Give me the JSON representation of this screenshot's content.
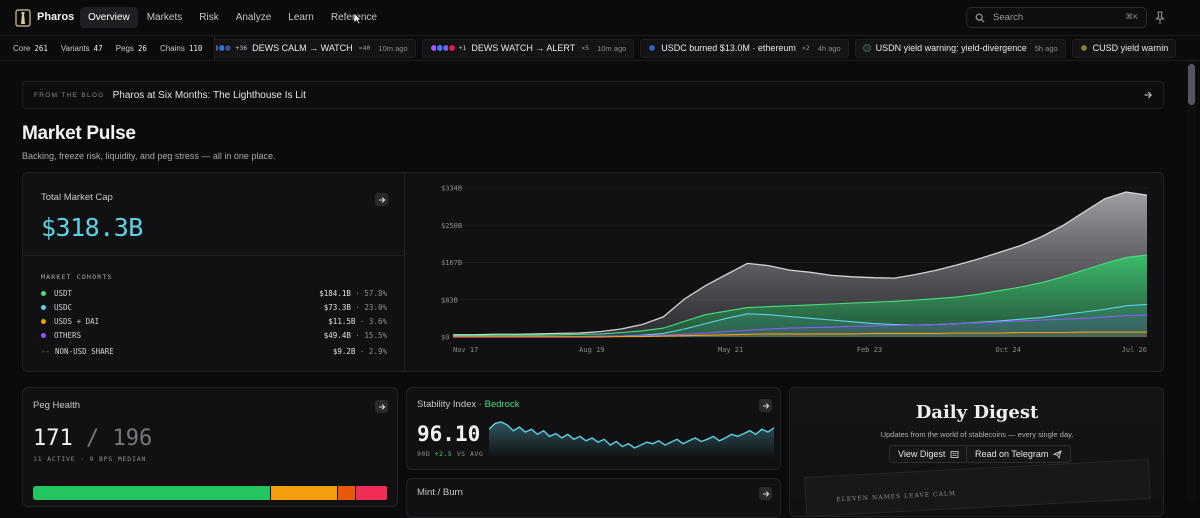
{
  "nav": {
    "brand": "Pharos",
    "links": [
      "Overview",
      "Markets",
      "Risk",
      "Analyze",
      "Learn",
      "Reference"
    ],
    "active": "Overview",
    "search_placeholder": "Search",
    "search_shortcut": "⌘K"
  },
  "ticker": {
    "stats": [
      {
        "label": "Core",
        "value": "261"
      },
      {
        "label": "Variants",
        "value": "47"
      },
      {
        "label": "Pegs",
        "value": "26"
      },
      {
        "label": "Chains",
        "value": "110"
      }
    ],
    "items": [
      {
        "extra": "+36",
        "text": "DEWS CALM → WATCH",
        "count": "×40",
        "age": "10m ago"
      },
      {
        "extra": "+1",
        "text": "DEWS WATCH → ALERT",
        "count": "×5",
        "age": "10m ago"
      },
      {
        "text": "USDC burned $13.0M · ethereum",
        "count": "×2",
        "age": "4h ago"
      },
      {
        "text": "USDN yield warning: yield-divergence",
        "age": "5h ago"
      },
      {
        "text": "CUSD yield warnin"
      }
    ]
  },
  "banner": {
    "tag": "FROM THE BLOG",
    "title": "Pharos at Six Months: The Lighthouse Is Lit"
  },
  "market_pulse": {
    "title": "Market Pulse",
    "subtitle": "Backing, freeze risk, liquidity, and peg stress — all in one place."
  },
  "market_cap": {
    "label": "Total Market Cap",
    "value": "$318.3B",
    "cohorts_label": "MARKET COHORTS",
    "cohorts": [
      {
        "name": "USDT",
        "value": "$184.1B",
        "share": "57.8%",
        "color": "#4ade80"
      },
      {
        "name": "USDC",
        "value": "$73.3B",
        "share": "23.0%",
        "color": "#5fd3e6"
      },
      {
        "name": "USDS + DAI",
        "value": "$11.5B",
        "share": "3.6%",
        "color": "#f59e0b"
      },
      {
        "name": "OTHERS",
        "value": "$49.4B",
        "share": "15.5%",
        "color": "#8b5cf6"
      },
      {
        "name": "NON-USD SHARE",
        "value": "$9.2B",
        "share": "2.9%",
        "color": "#6b6b70"
      }
    ]
  },
  "chart_data": {
    "type": "area",
    "x_labels": [
      "Nov 17",
      "Aug 19",
      "May 21",
      "Feb 23",
      "Oct 24",
      "Jul 26"
    ],
    "y_labels": [
      "$334B",
      "$250B",
      "$167B",
      "$83B",
      "$0"
    ],
    "ylim": [
      0,
      334
    ],
    "series": [
      {
        "name": "Total",
        "color": "#9a9aa0",
        "values": [
          5,
          5,
          6,
          6,
          7,
          8,
          9,
          12,
          18,
          28,
          45,
          85,
          115,
          140,
          165,
          160,
          150,
          145,
          138,
          135,
          133,
          132,
          140,
          150,
          162,
          175,
          190,
          205,
          225,
          250,
          280,
          310,
          325,
          318
        ]
      },
      {
        "name": "USDT",
        "color": "#4ade80",
        "values": [
          3,
          3,
          4,
          4,
          4,
          5,
          6,
          7,
          10,
          14,
          20,
          35,
          50,
          58,
          66,
          68,
          70,
          72,
          74,
          76,
          78,
          80,
          83,
          86,
          90,
          96,
          104,
          112,
          122,
          135,
          150,
          165,
          178,
          184
        ]
      },
      {
        "name": "USDC",
        "color": "#5fd3e6",
        "values": [
          0,
          0,
          0,
          0,
          0,
          0,
          0,
          1,
          2,
          4,
          8,
          18,
          30,
          42,
          52,
          50,
          46,
          42,
          38,
          34,
          30,
          28,
          27,
          28,
          30,
          33,
          36,
          40,
          44,
          50,
          56,
          62,
          70,
          73
        ]
      },
      {
        "name": "OTHERS",
        "color": "#8b5cf6",
        "values": [
          1,
          1,
          1,
          1,
          1,
          1,
          1,
          2,
          2,
          3,
          4,
          6,
          9,
          12,
          15,
          18,
          20,
          21,
          22,
          24,
          25,
          26,
          27,
          28,
          30,
          32,
          34,
          36,
          38,
          40,
          42,
          45,
          48,
          49
        ]
      },
      {
        "name": "USDS + DAI",
        "color": "#f59e0b",
        "values": [
          0,
          0,
          0,
          0,
          0,
          0,
          0,
          0,
          1,
          1,
          2,
          3,
          4,
          5,
          6,
          7,
          7,
          7,
          7,
          7,
          8,
          8,
          8,
          8,
          9,
          9,
          9,
          10,
          10,
          10,
          11,
          11,
          11,
          11
        ]
      }
    ]
  },
  "peg_health": {
    "label": "Peg Health",
    "value": "171",
    "total": "196",
    "meta": "11 ACTIVE · 9 BPS MEDIAN",
    "bar": [
      {
        "share": 0.67,
        "color": "#22c55e"
      },
      {
        "share": 0.19,
        "color": "#f59e0b"
      },
      {
        "share": 0.05,
        "color": "#ea580c"
      },
      {
        "share": 0.09,
        "color": "#ef2d55"
      }
    ]
  },
  "stability": {
    "label": "Stability Index",
    "tag": "Bedrock",
    "value": "96.10",
    "meta_prefix": "90D",
    "meta_delta": "+2.5",
    "meta_suffix": "VS AVG",
    "spark": [
      62,
      70,
      72,
      68,
      60,
      65,
      58,
      62,
      55,
      60,
      52,
      56,
      50,
      55,
      48,
      52,
      46,
      50,
      44,
      48,
      40,
      45,
      38,
      42,
      36,
      40,
      44,
      42,
      46,
      40,
      44,
      48,
      42,
      46,
      50,
      45,
      48,
      52,
      46,
      50,
      55,
      52,
      56,
      60,
      55,
      62,
      58,
      64
    ]
  },
  "mint_burn": {
    "label": "Mint / Burn"
  },
  "digest": {
    "title": "Daily Digest",
    "subtitle": "Updates from the world of stablecoins — every single day.",
    "view_label": "View Digest",
    "telegram_label": "Read on Telegram",
    "paper_text": "ELEVEN NAMES LEAVE CALM"
  }
}
